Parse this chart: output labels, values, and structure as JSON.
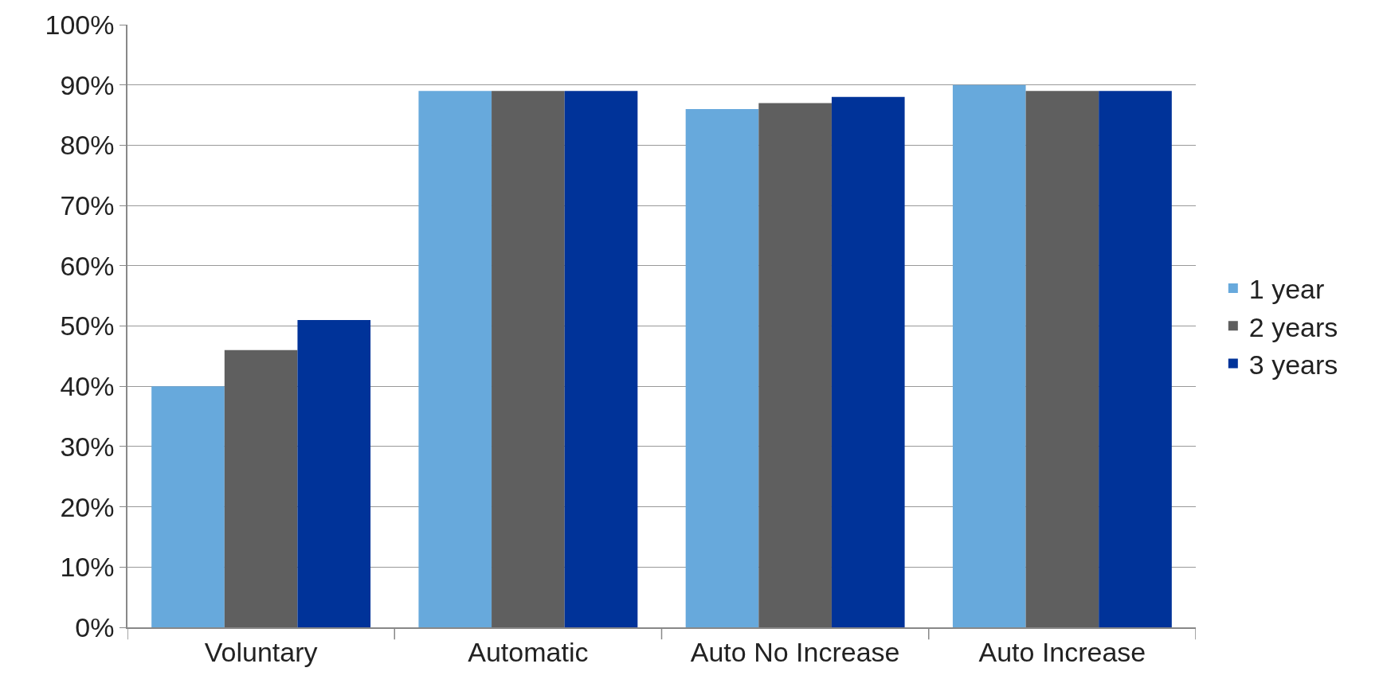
{
  "chart_data": {
    "type": "bar",
    "categories": [
      "Voluntary",
      "Automatic",
      "Auto No Increase",
      "Auto Increase"
    ],
    "series": [
      {
        "name": "1 year",
        "color": "#67a9dc",
        "values": [
          40,
          89,
          86,
          90
        ]
      },
      {
        "name": "2 years",
        "color": "#5f5f5f",
        "values": [
          46,
          89,
          87,
          89
        ]
      },
      {
        "name": "3 years",
        "color": "#003399",
        "values": [
          51,
          89,
          88,
          89
        ]
      }
    ],
    "ylim": [
      0,
      100
    ],
    "yticks": [
      {
        "value": 0,
        "label": "0%"
      },
      {
        "value": 10,
        "label": "10%"
      },
      {
        "value": 20,
        "label": "20%"
      },
      {
        "value": 30,
        "label": "30%"
      },
      {
        "value": 40,
        "label": "40%"
      },
      {
        "value": 50,
        "label": "50%"
      },
      {
        "value": 60,
        "label": "60%"
      },
      {
        "value": 70,
        "label": "70%"
      },
      {
        "value": 80,
        "label": "80%"
      },
      {
        "value": 90,
        "label": "90%"
      },
      {
        "value": 100,
        "label": "100%"
      }
    ],
    "grid": "y",
    "legend": "right"
  }
}
